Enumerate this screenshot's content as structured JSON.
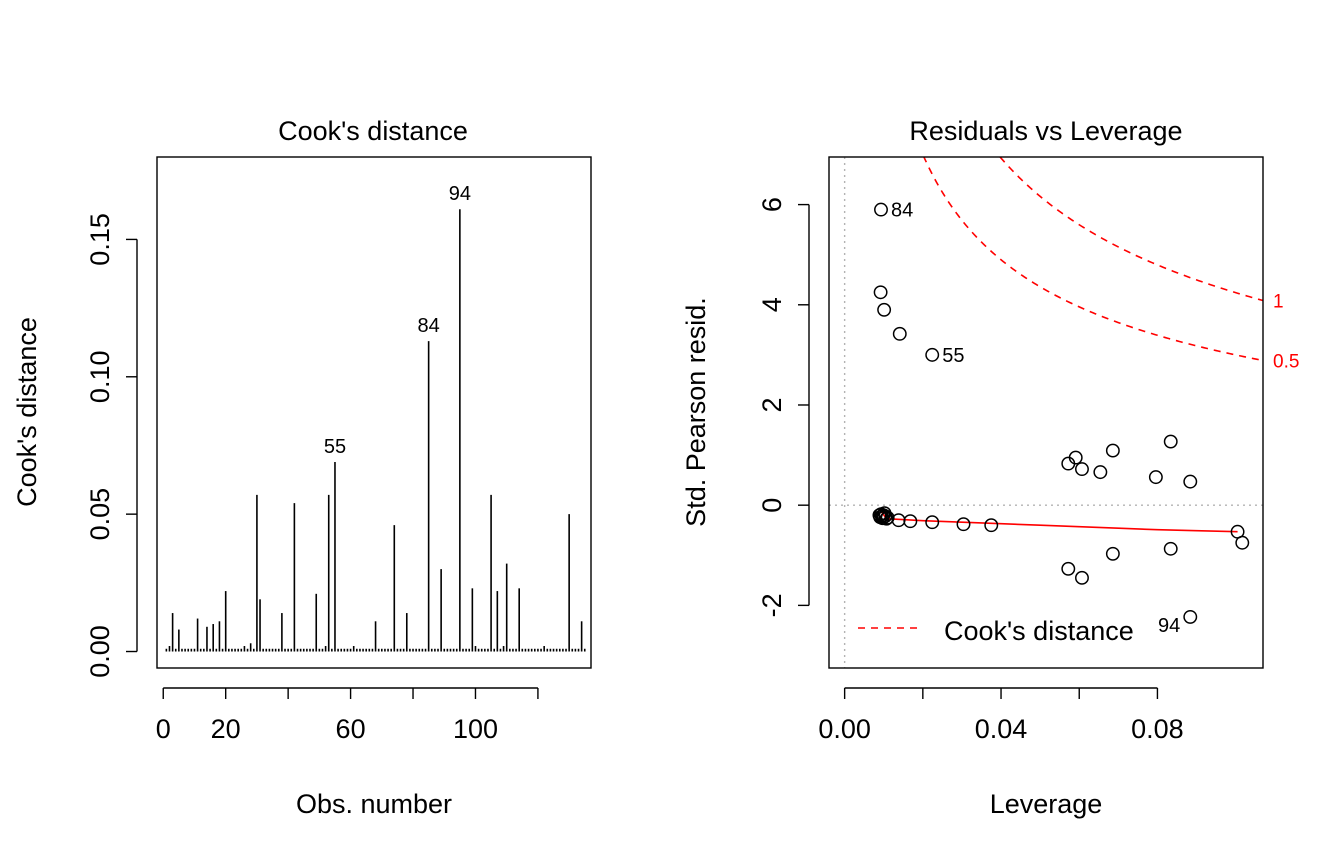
{
  "chart_data": [
    {
      "type": "bar",
      "title": "Cook's distance",
      "xlabel": "Obs. number",
      "ylabel": "Cook's distance",
      "xlim": [
        -2,
        137
      ],
      "ylim": [
        -0.006,
        0.18
      ],
      "xticks": [
        {
          "value": 0,
          "label": "0"
        },
        {
          "value": 20,
          "label": "20"
        },
        {
          "value": 40,
          "label": ""
        },
        {
          "value": 60,
          "label": "60"
        },
        {
          "value": 80,
          "label": ""
        },
        {
          "value": 100,
          "label": "100"
        },
        {
          "value": 120,
          "label": ""
        }
      ],
      "yticks": [
        {
          "value": 0.0,
          "label": "0.00"
        },
        {
          "value": 0.05,
          "label": "0.05"
        },
        {
          "value": 0.1,
          "label": "0.10"
        },
        {
          "value": 0.15,
          "label": "0.15"
        }
      ],
      "x": [
        1,
        2,
        3,
        4,
        5,
        6,
        7,
        8,
        9,
        10,
        11,
        12,
        13,
        14,
        15,
        16,
        17,
        18,
        19,
        20,
        21,
        22,
        23,
        24,
        25,
        26,
        27,
        28,
        29,
        30,
        31,
        32,
        33,
        34,
        35,
        36,
        37,
        38,
        39,
        40,
        41,
        42,
        43,
        44,
        45,
        46,
        47,
        48,
        49,
        50,
        51,
        52,
        53,
        54,
        55,
        56,
        57,
        58,
        59,
        60,
        61,
        62,
        63,
        64,
        65,
        66,
        67,
        68,
        69,
        70,
        71,
        72,
        73,
        74,
        75,
        76,
        77,
        78,
        79,
        80,
        81,
        82,
        83,
        84,
        85,
        86,
        87,
        88,
        89,
        90,
        91,
        92,
        93,
        94,
        95,
        96,
        97,
        98,
        99,
        100,
        101,
        102,
        103,
        104,
        105,
        106,
        107,
        108,
        109,
        110,
        111,
        112,
        113,
        114,
        115,
        116,
        117,
        118,
        119,
        120,
        121,
        122,
        123,
        124,
        125,
        126,
        127,
        128,
        129,
        130,
        131,
        132,
        133,
        134,
        135
      ],
      "values": [
        0.001,
        0.002,
        0.014,
        0.001,
        0.008,
        0.001,
        0.001,
        0.001,
        0.001,
        0.001,
        0.012,
        0.001,
        0.001,
        0.009,
        0.001,
        0.01,
        0.001,
        0.011,
        0.001,
        0.022,
        0.001,
        0.001,
        0.001,
        0.001,
        0.001,
        0.002,
        0.001,
        0.003,
        0.001,
        0.057,
        0.019,
        0.001,
        0.001,
        0.001,
        0.001,
        0.001,
        0.001,
        0.014,
        0.001,
        0.001,
        0.001,
        0.054,
        0.001,
        0.001,
        0.001,
        0.001,
        0.001,
        0.001,
        0.021,
        0.001,
        0.001,
        0.002,
        0.057,
        0.001,
        0.069,
        0.001,
        0.001,
        0.001,
        0.001,
        0.001,
        0.002,
        0.001,
        0.001,
        0.001,
        0.001,
        0.001,
        0.001,
        0.011,
        0.001,
        0.001,
        0.001,
        0.001,
        0.001,
        0.046,
        0.001,
        0.001,
        0.001,
        0.014,
        0.001,
        0.001,
        0.001,
        0.001,
        0.001,
        0.001,
        0.113,
        0.001,
        0.001,
        0.001,
        0.03,
        0.001,
        0.001,
        0.001,
        0.001,
        0.001,
        0.161,
        0.001,
        0.001,
        0.001,
        0.023,
        0.002,
        0.001,
        0.001,
        0.001,
        0.001,
        0.057,
        0.001,
        0.022,
        0.001,
        0.002,
        0.032,
        0.001,
        0.001,
        0.001,
        0.023,
        0.001,
        0.001,
        0.001,
        0.001,
        0.001,
        0.001,
        0.001,
        0.002,
        0.001,
        0.001,
        0.001,
        0.001,
        0.001,
        0.001,
        0.001,
        0.05,
        0.001,
        0.001,
        0.001,
        0.011,
        0.001
      ],
      "labels": [
        {
          "x": 55,
          "text": "55"
        },
        {
          "x": 85,
          "text": "84"
        },
        {
          "x": 95,
          "text": "94"
        }
      ]
    },
    {
      "type": "scatter",
      "title": "Residuals vs Leverage",
      "xlabel": "Leverage",
      "ylabel": "Std. Pearson resid.",
      "xlim": [
        -0.004,
        0.107
      ],
      "ylim": [
        -3.25,
        6.95
      ],
      "xticks": [
        {
          "value": 0.0,
          "label": "0.00"
        },
        {
          "value": 0.02,
          "label": ""
        },
        {
          "value": 0.04,
          "label": "0.04"
        },
        {
          "value": 0.06,
          "label": ""
        },
        {
          "value": 0.08,
          "label": "0.08"
        }
      ],
      "yticks": [
        {
          "value": -2,
          "label": "-2"
        },
        {
          "value": 0,
          "label": "0"
        },
        {
          "value": 2,
          "label": "2"
        },
        {
          "value": 4,
          "label": "4"
        },
        {
          "value": 6,
          "label": "6"
        }
      ],
      "points": [
        {
          "x": 0.0093,
          "y": 5.9,
          "label": "84"
        },
        {
          "x": 0.0092,
          "y": 4.25
        },
        {
          "x": 0.0101,
          "y": 3.9
        },
        {
          "x": 0.0141,
          "y": 3.42
        },
        {
          "x": 0.0224,
          "y": 3.0,
          "label": "55"
        },
        {
          "x": 0.0572,
          "y": 0.83
        },
        {
          "x": 0.0591,
          "y": 0.95
        },
        {
          "x": 0.0607,
          "y": 0.72
        },
        {
          "x": 0.0654,
          "y": 0.66
        },
        {
          "x": 0.0686,
          "y": 1.09
        },
        {
          "x": 0.0796,
          "y": 0.56
        },
        {
          "x": 0.0834,
          "y": 1.27
        },
        {
          "x": 0.0884,
          "y": 0.47
        },
        {
          "x": 0.0089,
          "y": -0.2
        },
        {
          "x": 0.0091,
          "y": -0.24
        },
        {
          "x": 0.0093,
          "y": -0.18
        },
        {
          "x": 0.0095,
          "y": -0.22
        },
        {
          "x": 0.0097,
          "y": -0.26
        },
        {
          "x": 0.0099,
          "y": -0.2
        },
        {
          "x": 0.0102,
          "y": -0.16
        },
        {
          "x": 0.0104,
          "y": -0.22
        },
        {
          "x": 0.0107,
          "y": -0.27
        },
        {
          "x": 0.011,
          "y": -0.25
        },
        {
          "x": 0.0138,
          "y": -0.3
        },
        {
          "x": 0.0168,
          "y": -0.32
        },
        {
          "x": 0.0224,
          "y": -0.34
        },
        {
          "x": 0.0304,
          "y": -0.38
        },
        {
          "x": 0.0375,
          "y": -0.4
        },
        {
          "x": 0.0572,
          "y": -1.27
        },
        {
          "x": 0.0607,
          "y": -1.45
        },
        {
          "x": 0.0686,
          "y": -0.97
        },
        {
          "x": 0.0834,
          "y": -0.87
        },
        {
          "x": 0.1005,
          "y": -0.53
        },
        {
          "x": 0.1017,
          "y": -0.75
        },
        {
          "x": 0.0884,
          "y": -2.23,
          "label": "94"
        }
      ],
      "smoother": {
        "x": [
          0.0093,
          0.0107,
          0.02,
          0.03,
          0.04,
          0.05,
          0.06,
          0.07,
          0.08,
          0.09,
          0.1005
        ],
        "y": [
          -0.12,
          -0.27,
          -0.31,
          -0.34,
          -0.37,
          -0.4,
          -0.43,
          -0.46,
          -0.49,
          -0.51,
          -0.53
        ],
        "color": "#ff0000"
      },
      "cook_contours": [
        {
          "level": 0.5,
          "label": "0.5"
        },
        {
          "level": 1,
          "label": "1"
        }
      ],
      "contour_color": "#ff0000",
      "legend": {
        "text": "Cook's distance",
        "position": "bottom-left",
        "line": "dashed red"
      },
      "reference_lines": [
        {
          "axis": "x",
          "value": 0,
          "style": "dotted grey"
        },
        {
          "axis": "y",
          "value": 0,
          "style": "dotted grey"
        }
      ]
    }
  ]
}
